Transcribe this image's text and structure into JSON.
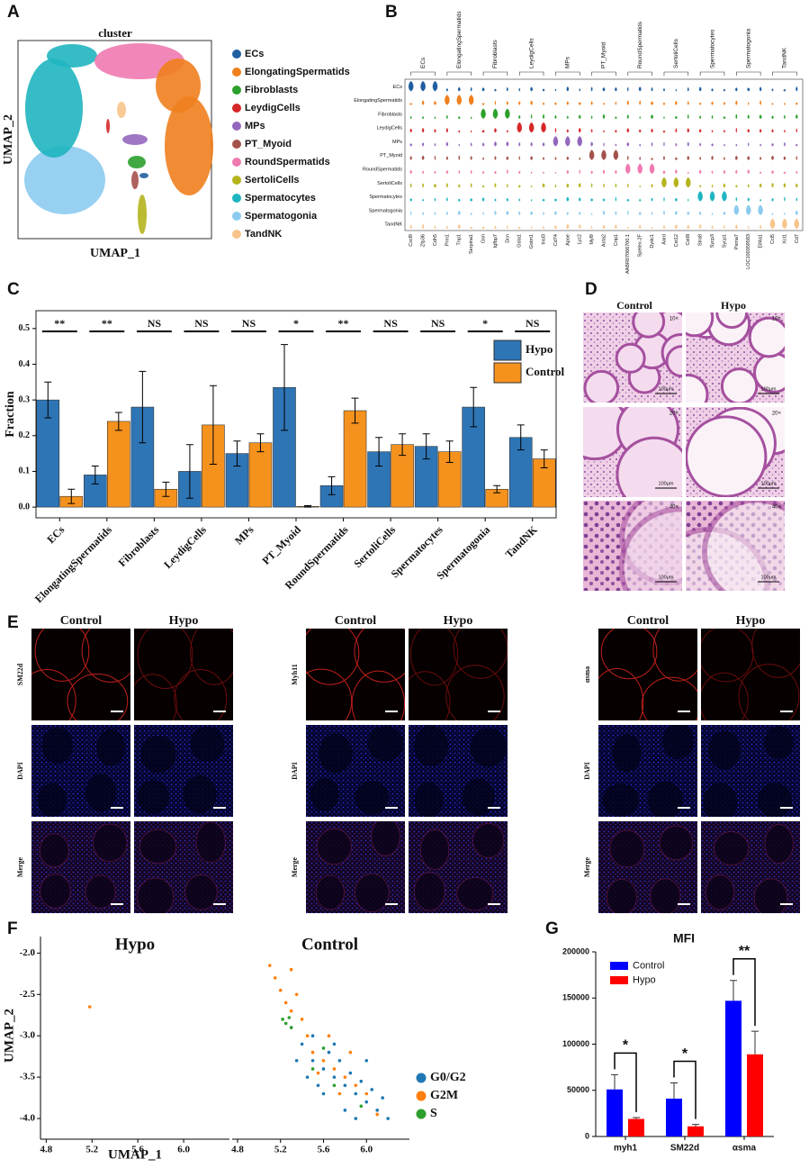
{
  "panel_labels": [
    "A",
    "B",
    "C",
    "D",
    "E",
    "F",
    "G"
  ],
  "umap_panel": {
    "title": "cluster",
    "x_label": "UMAP_1",
    "y_label": "UMAP_2",
    "legend": [
      {
        "label": "ECs",
        "color": "#1f5fa0"
      },
      {
        "label": "ElongatingSpermatids",
        "color": "#f0801e"
      },
      {
        "label": "Fibroblasts",
        "color": "#2ca02c"
      },
      {
        "label": "LeydigCells",
        "color": "#d62728"
      },
      {
        "label": "MPs",
        "color": "#9467bd"
      },
      {
        "label": "PT_Myoid",
        "color": "#a5524c"
      },
      {
        "label": "RoundSpermatids",
        "color": "#f07ab0"
      },
      {
        "label": "SertoliCells",
        "color": "#b4b41e"
      },
      {
        "label": "Spermatocytes",
        "color": "#1fb5c0"
      },
      {
        "label": "Spermatogonia",
        "color": "#8ccbef"
      },
      {
        "label": "TandNK",
        "color": "#f7c48a"
      }
    ]
  },
  "violin_panel": {
    "genes": [
      [
        "Cxcl9",
        "Zfp36",
        "Cdh5"
      ],
      [
        "Prm1",
        "Tnp1",
        "Serpina1"
      ],
      [
        "Gsn",
        "Igfbp7",
        "Dcn"
      ],
      [
        "Gsta1",
        "Gstm1",
        "Insl3"
      ],
      [
        "Cd74",
        "Apoe",
        "Lyz2"
      ],
      [
        "Myl9",
        "Acta2",
        "Crip1"
      ],
      [
        "AABR07066700.1",
        "Spetex-2F",
        "Dydc1"
      ],
      [
        "Aard",
        "Cst12",
        "Cst8l"
      ],
      [
        "Stra8",
        "Sycp3",
        "Sycp1"
      ],
      [
        "Psma7",
        "LOC100359583",
        "Eif4a1"
      ],
      [
        "Ccl5",
        "Xcl1",
        "Cd7"
      ]
    ]
  },
  "histology_panel": {
    "columns": [
      "Control",
      "Hypo"
    ],
    "magnifications": [
      "10×",
      "20×",
      "40×"
    ],
    "scale_bar": "100μm"
  },
  "if_panel": {
    "groups": [
      {
        "columns": [
          "Control",
          "Hypo"
        ],
        "rows": [
          "SM22d",
          "DAPI",
          "Merge"
        ]
      },
      {
        "columns": [
          "Control",
          "Hypo"
        ],
        "rows": [
          "Myh11",
          "DAPI",
          "Merge"
        ]
      },
      {
        "columns": [
          "Control",
          "Hypo"
        ],
        "rows": [
          "αsma",
          "DAPI",
          "Merge"
        ]
      }
    ]
  },
  "chart_data": [
    {
      "type": "bar",
      "y_label": "Fraction",
      "categories": [
        "ECs",
        "ElongatingSpermatids",
        "Fibroblasts",
        "LeydigCells",
        "MPs",
        "PT_Myoid",
        "RoundSpermatids",
        "SertoliCells",
        "Spermatocytes",
        "Spermatogonia",
        "TandNK"
      ],
      "ylim": [
        -0.03,
        0.55
      ],
      "yticks": [
        {
          "value": 0,
          "label": "0.0"
        },
        0.1,
        0.2,
        0.3,
        0.4,
        0.5
      ],
      "series": [
        {
          "name": "Hypo",
          "color": "#2e75b6",
          "values": [
            0.3,
            0.09,
            0.28,
            0.1,
            0.15,
            0.335,
            0.06,
            0.155,
            0.17,
            0.28,
            0.195
          ],
          "errors": [
            0.05,
            0.025,
            0.1,
            0.075,
            0.035,
            0.12,
            0.025,
            0.04,
            0.035,
            0.055,
            0.035
          ]
        },
        {
          "name": "Control",
          "color": "#f5921e",
          "values": [
            0.03,
            0.24,
            0.05,
            0.23,
            0.18,
            0.002,
            0.27,
            0.175,
            0.155,
            0.05,
            0.135
          ],
          "errors": [
            0.02,
            0.025,
            0.02,
            0.11,
            0.025,
            0.002,
            0.035,
            0.03,
            0.03,
            0.01,
            0.025
          ]
        }
      ],
      "significance": [
        "**",
        "**",
        "NS",
        "NS",
        "NS",
        "*",
        "**",
        "NS",
        "NS",
        "*",
        "NS"
      ],
      "legend": "upper right"
    },
    {
      "type": "scatter",
      "x_label": "UMAP_1",
      "y_label": "UMAP_2",
      "facets": [
        "Hypo",
        "Control"
      ],
      "xlim": [
        4.75,
        6.4
      ],
      "ylim": [
        -4.25,
        -1.8
      ],
      "xticks": [
        4.8,
        5.2,
        5.6,
        {
          "value": 6,
          "label": "6.0"
        }
      ],
      "yticks": [
        {
          "value": -2,
          "label": "-2.0"
        },
        -2.5,
        {
          "value": -3,
          "label": "-3.0"
        },
        -3.5,
        {
          "value": -4,
          "label": "-4.0"
        }
      ],
      "series": [
        {
          "name": "G0/G2",
          "color": "#1f77b4",
          "x": [
            [],
            [
              5.3,
              5.4,
              5.5,
              5.6,
              5.7,
              5.8,
              5.9,
              6.0,
              6.1,
              6.2,
              5.5,
              5.65,
              5.75,
              5.85,
              5.95,
              6.05,
              5.45,
              5.6,
              5.8,
              5.35,
              5.9,
              6.15,
              5.7,
              5.55,
              6.0
            ]
          ],
          "y": [
            [],
            [
              -2.9,
              -3.1,
              -3.3,
              -3.4,
              -3.5,
              -3.6,
              -3.7,
              -3.8,
              -3.9,
              -4.0,
              -3.0,
              -3.2,
              -3.3,
              -3.45,
              -3.55,
              -3.65,
              -3.5,
              -3.7,
              -3.9,
              -3.3,
              -4.0,
              -3.75,
              -3.1,
              -3.6,
              -3.3
            ]
          ]
        },
        {
          "name": "G2M",
          "color": "#ff7f0e",
          "x": [
            [
              5.18
            ],
            [
              5.1,
              5.15,
              5.2,
              5.25,
              5.3,
              5.35,
              5.4,
              5.45,
              5.5,
              5.6,
              5.7,
              5.8,
              5.9,
              6.0,
              5.55,
              5.65,
              5.75,
              5.85,
              5.3,
              6.1
            ]
          ],
          "y": [
            [
              -2.65
            ],
            [
              -2.15,
              -2.3,
              -2.45,
              -2.6,
              -2.7,
              -2.5,
              -2.8,
              -3.0,
              -3.2,
              -3.3,
              -3.4,
              -3.5,
              -3.6,
              -3.7,
              -3.45,
              -3.0,
              -3.7,
              -3.2,
              -2.2,
              -3.95
            ]
          ]
        },
        {
          "name": "S",
          "color": "#2ca02c",
          "x": [
            [],
            [
              5.22,
              5.25,
              5.28,
              5.3,
              5.5,
              5.7,
              5.6,
              5.95
            ]
          ],
          "y": [
            [],
            [
              -2.8,
              -2.85,
              -2.78,
              -2.9,
              -3.4,
              -3.6,
              -3.15,
              -3.85
            ]
          ]
        }
      ],
      "legend": "lower right"
    },
    {
      "type": "bar",
      "title": "MFI",
      "categories": [
        "myh1",
        "SM22d",
        "αsma"
      ],
      "ylim": [
        0,
        200000
      ],
      "yticks": [
        0,
        50000,
        100000,
        150000,
        200000
      ],
      "series": [
        {
          "name": "Control",
          "color": "#0000ff",
          "values": [
            51000,
            41000,
            147000
          ],
          "errors": [
            16000,
            17000,
            22000
          ]
        },
        {
          "name": "Hypo",
          "color": "#ff0000",
          "values": [
            19000,
            11000,
            89000
          ],
          "errors": [
            1500,
            2000,
            25000
          ]
        }
      ],
      "significance": [
        "*",
        "*",
        "**"
      ],
      "legend": "upper left"
    }
  ]
}
